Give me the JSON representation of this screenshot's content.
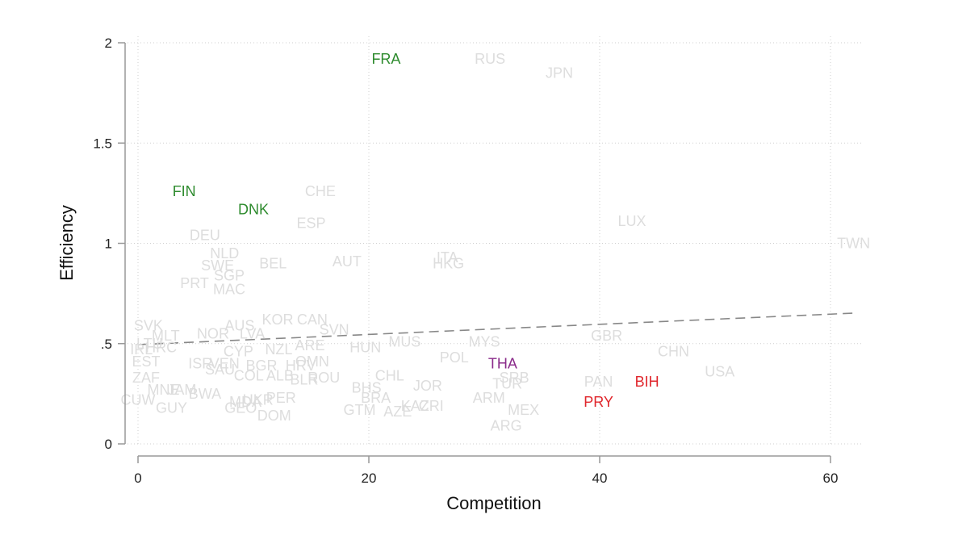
{
  "chart_data": {
    "type": "scatter",
    "xlabel": "Competition",
    "ylabel": "Efficiency",
    "xlim": [
      -0.5,
      62
    ],
    "ylim": [
      0,
      2
    ],
    "x_ticks": [
      0,
      20,
      40,
      60
    ],
    "x_tick_labels": [
      "0",
      "20",
      "40",
      "60"
    ],
    "y_ticks": [
      0,
      0.5,
      1,
      1.5,
      2
    ],
    "y_tick_labels": [
      "0",
      ".5",
      "1",
      "1.5",
      "2"
    ],
    "grid": true,
    "colors": {
      "default": "#dddddd",
      "green": "#2e8b2e",
      "purple": "#8a2b8a",
      "red": "#e0262c",
      "fit": "#888888"
    },
    "fit_line": {
      "x": [
        0,
        62
      ],
      "y": [
        0.495,
        0.652
      ],
      "style": "dashed"
    },
    "points": [
      {
        "label": "FRA",
        "x": 21.5,
        "y": 1.92,
        "color": "green"
      },
      {
        "label": "RUS",
        "x": 30.5,
        "y": 1.92,
        "color": "default"
      },
      {
        "label": "JPN",
        "x": 36.5,
        "y": 1.85,
        "color": "default"
      },
      {
        "label": "FIN",
        "x": 4.0,
        "y": 1.26,
        "color": "green"
      },
      {
        "label": "DNK",
        "x": 10.0,
        "y": 1.17,
        "color": "green"
      },
      {
        "label": "CHE",
        "x": 15.8,
        "y": 1.26,
        "color": "default"
      },
      {
        "label": "ESP",
        "x": 15.0,
        "y": 1.1,
        "color": "default"
      },
      {
        "label": "LUX",
        "x": 42.8,
        "y": 1.11,
        "color": "default"
      },
      {
        "label": "TWN",
        "x": 62.0,
        "y": 1.0,
        "color": "default"
      },
      {
        "label": "DEU",
        "x": 5.8,
        "y": 1.04,
        "color": "default"
      },
      {
        "label": "NLD",
        "x": 7.5,
        "y": 0.95,
        "color": "default"
      },
      {
        "label": "SWE",
        "x": 6.9,
        "y": 0.89,
        "color": "default"
      },
      {
        "label": "BEL",
        "x": 11.7,
        "y": 0.9,
        "color": "default"
      },
      {
        "label": "AUT",
        "x": 18.1,
        "y": 0.91,
        "color": "default"
      },
      {
        "label": "ITA",
        "x": 26.8,
        "y": 0.93,
        "color": "default"
      },
      {
        "label": "HKG",
        "x": 26.9,
        "y": 0.9,
        "color": "default"
      },
      {
        "label": "PRT",
        "x": 4.9,
        "y": 0.8,
        "color": "default"
      },
      {
        "label": "SGP",
        "x": 7.9,
        "y": 0.84,
        "color": "default"
      },
      {
        "label": "MAC",
        "x": 7.9,
        "y": 0.77,
        "color": "default"
      },
      {
        "label": "KOR",
        "x": 12.1,
        "y": 0.62,
        "color": "default"
      },
      {
        "label": "CAN",
        "x": 15.1,
        "y": 0.62,
        "color": "default"
      },
      {
        "label": "AUS",
        "x": 8.8,
        "y": 0.59,
        "color": "default"
      },
      {
        "label": "SVN",
        "x": 17.0,
        "y": 0.57,
        "color": "default"
      },
      {
        "label": "SVK",
        "x": 0.9,
        "y": 0.59,
        "color": "default"
      },
      {
        "label": "MLT",
        "x": 2.4,
        "y": 0.54,
        "color": "default"
      },
      {
        "label": "NOR",
        "x": 6.5,
        "y": 0.55,
        "color": "default"
      },
      {
        "label": "LVA",
        "x": 9.9,
        "y": 0.55,
        "color": "default"
      },
      {
        "label": "LTU",
        "x": 1.0,
        "y": 0.5,
        "color": "default"
      },
      {
        "label": "IRL",
        "x": 0.3,
        "y": 0.47,
        "color": "default"
      },
      {
        "label": "HRC",
        "x": 2.0,
        "y": 0.48,
        "color": "default"
      },
      {
        "label": "EST",
        "x": 0.7,
        "y": 0.41,
        "color": "default"
      },
      {
        "label": "CYP",
        "x": 8.7,
        "y": 0.46,
        "color": "default"
      },
      {
        "label": "NZL",
        "x": 12.2,
        "y": 0.47,
        "color": "default"
      },
      {
        "label": "ARE",
        "x": 14.9,
        "y": 0.49,
        "color": "default"
      },
      {
        "label": "HUN",
        "x": 19.7,
        "y": 0.48,
        "color": "default"
      },
      {
        "label": "MUS",
        "x": 23.1,
        "y": 0.51,
        "color": "default"
      },
      {
        "label": "MYS",
        "x": 30.0,
        "y": 0.51,
        "color": "default"
      },
      {
        "label": "GBR",
        "x": 40.6,
        "y": 0.54,
        "color": "default"
      },
      {
        "label": "CHN",
        "x": 46.4,
        "y": 0.46,
        "color": "default"
      },
      {
        "label": "POL",
        "x": 27.4,
        "y": 0.43,
        "color": "default"
      },
      {
        "label": "THA",
        "x": 31.6,
        "y": 0.4,
        "color": "purple"
      },
      {
        "label": "ISR",
        "x": 5.4,
        "y": 0.4,
        "color": "default"
      },
      {
        "label": "VEN",
        "x": 7.5,
        "y": 0.4,
        "color": "default"
      },
      {
        "label": "OMN",
        "x": 15.1,
        "y": 0.41,
        "color": "default"
      },
      {
        "label": "SAU",
        "x": 7.1,
        "y": 0.37,
        "color": "default"
      },
      {
        "label": "BGR",
        "x": 10.7,
        "y": 0.39,
        "color": "default"
      },
      {
        "label": "HRV",
        "x": 14.1,
        "y": 0.39,
        "color": "default"
      },
      {
        "label": "COL",
        "x": 9.6,
        "y": 0.34,
        "color": "default"
      },
      {
        "label": "ALB",
        "x": 12.3,
        "y": 0.34,
        "color": "default"
      },
      {
        "label": "BLR",
        "x": 14.4,
        "y": 0.32,
        "color": "default"
      },
      {
        "label": "ROU",
        "x": 16.1,
        "y": 0.33,
        "color": "default"
      },
      {
        "label": "CHL",
        "x": 21.8,
        "y": 0.34,
        "color": "default"
      },
      {
        "label": "SRB",
        "x": 32.6,
        "y": 0.33,
        "color": "default"
      },
      {
        "label": "TUR",
        "x": 32.0,
        "y": 0.3,
        "color": "default"
      },
      {
        "label": "PAN",
        "x": 39.9,
        "y": 0.31,
        "color": "default"
      },
      {
        "label": "BIH",
        "x": 44.1,
        "y": 0.31,
        "color": "red"
      },
      {
        "label": "USA",
        "x": 50.4,
        "y": 0.36,
        "color": "default"
      },
      {
        "label": "ZAF",
        "x": 0.7,
        "y": 0.33,
        "color": "default"
      },
      {
        "label": "MNE",
        "x": 2.2,
        "y": 0.27,
        "color": "default"
      },
      {
        "label": "JAM",
        "x": 3.8,
        "y": 0.27,
        "color": "default"
      },
      {
        "label": "BWA",
        "x": 5.8,
        "y": 0.25,
        "color": "default"
      },
      {
        "label": "BHS",
        "x": 19.8,
        "y": 0.28,
        "color": "default"
      },
      {
        "label": "JOR",
        "x": 25.1,
        "y": 0.29,
        "color": "default"
      },
      {
        "label": "ARM",
        "x": 30.4,
        "y": 0.23,
        "color": "default"
      },
      {
        "label": "PRY",
        "x": 39.9,
        "y": 0.21,
        "color": "red"
      },
      {
        "label": "CUW",
        "x": 0.0,
        "y": 0.22,
        "color": "default"
      },
      {
        "label": "MDA",
        "x": 9.3,
        "y": 0.21,
        "color": "default"
      },
      {
        "label": "UKR",
        "x": 10.4,
        "y": 0.22,
        "color": "default"
      },
      {
        "label": "PER",
        "x": 12.4,
        "y": 0.23,
        "color": "default"
      },
      {
        "label": "BRA",
        "x": 20.6,
        "y": 0.23,
        "color": "default"
      },
      {
        "label": "KAZ",
        "x": 24.0,
        "y": 0.19,
        "color": "default"
      },
      {
        "label": "CRI",
        "x": 25.4,
        "y": 0.19,
        "color": "default"
      },
      {
        "label": "GUY",
        "x": 2.9,
        "y": 0.18,
        "color": "default"
      },
      {
        "label": "GEO",
        "x": 8.9,
        "y": 0.18,
        "color": "default"
      },
      {
        "label": "GTM",
        "x": 19.2,
        "y": 0.17,
        "color": "default"
      },
      {
        "label": "AZE",
        "x": 22.5,
        "y": 0.16,
        "color": "default"
      },
      {
        "label": "MEX",
        "x": 33.4,
        "y": 0.17,
        "color": "default"
      },
      {
        "label": "DOM",
        "x": 11.8,
        "y": 0.14,
        "color": "default"
      },
      {
        "label": "ARG",
        "x": 31.9,
        "y": 0.09,
        "color": "default"
      }
    ]
  }
}
